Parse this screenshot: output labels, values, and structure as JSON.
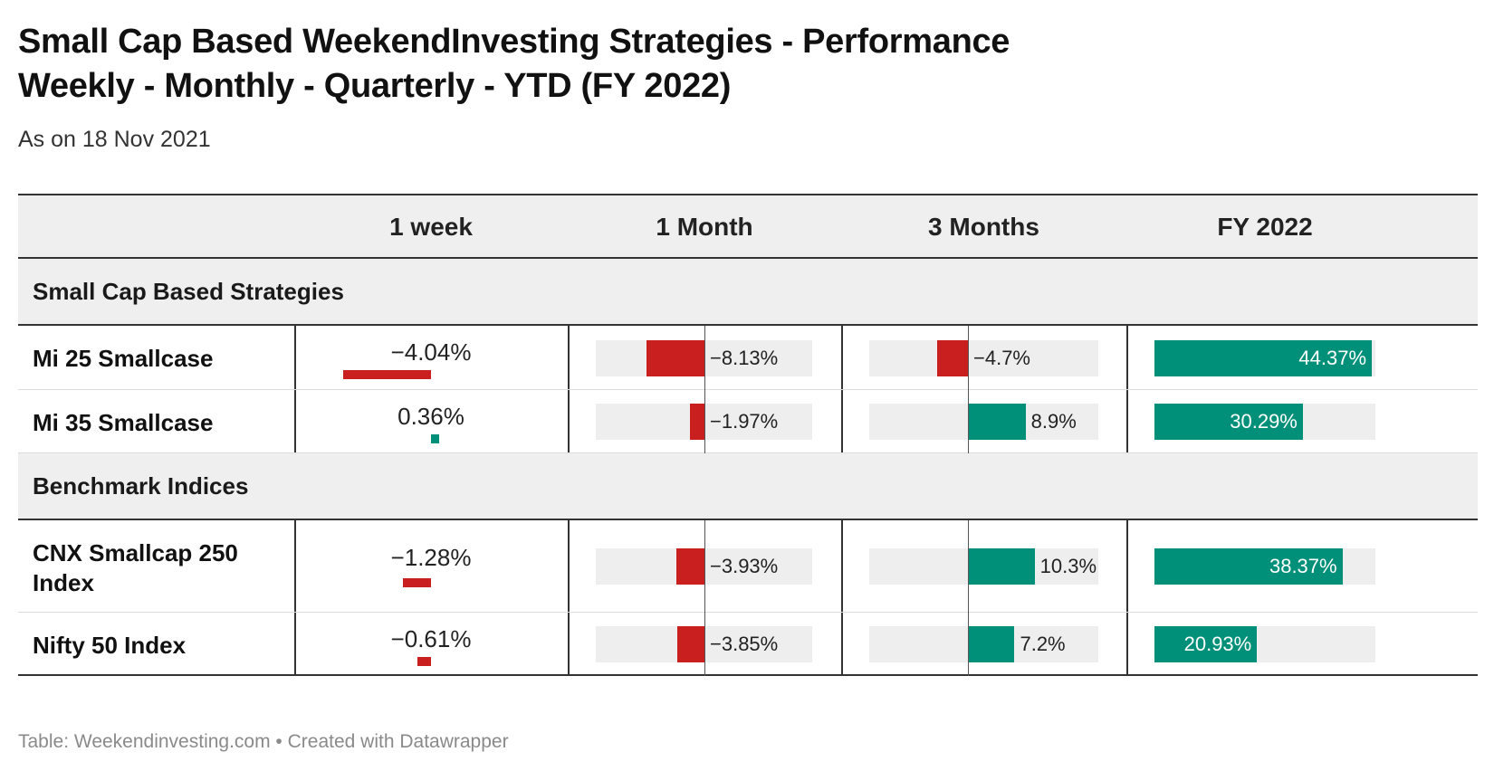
{
  "title_line1": "Small Cap Based WeekendInvesting Strategies - Performance",
  "title_line2": "Weekly - Monthly - Quarterly - YTD (FY 2022)",
  "subtitle": "As on 18 Nov 2021",
  "footer": "Table: Weekendinvesting.com • Created with Datawrapper",
  "colors": {
    "negative": "#c91f1f",
    "positive": "#00907a",
    "track": "#eeeeee"
  },
  "chart_data": {
    "type": "table",
    "columns": [
      "",
      "1 week",
      "1 Month",
      "3 Months",
      "FY 2022"
    ],
    "groups": [
      {
        "name": "Small Cap Based Strategies",
        "rows": [
          {
            "label": "Mi 25 Smallcase",
            "week": -4.04,
            "month": -8.13,
            "quarter": -4.7,
            "fy": 44.37,
            "week_label": "−4.04%",
            "month_label": "−8.13%",
            "quarter_label": "−4.7%",
            "fy_label": "44.37%"
          },
          {
            "label": "Mi 35 Smallcase",
            "week": 0.36,
            "month": -1.97,
            "quarter": 8.9,
            "fy": 30.29,
            "week_label": "0.36%",
            "month_label": "−1.97%",
            "quarter_label": "8.9%",
            "fy_label": "30.29%"
          }
        ]
      },
      {
        "name": "Benchmark Indices",
        "rows": [
          {
            "label": "CNX Smallcap 250 Index",
            "week": -1.28,
            "month": -3.93,
            "quarter": 10.3,
            "fy": 38.37,
            "week_label": "−1.28%",
            "month_label": "−3.93%",
            "quarter_label": "10.3%",
            "fy_label": "38.37%"
          },
          {
            "label": "Nifty 50 Index",
            "week": -0.61,
            "month": -3.85,
            "quarter": 7.2,
            "fy": 20.93,
            "week_label": "−0.61%",
            "month_label": "−3.85%",
            "quarter_label": "7.2%",
            "fy_label": "20.93%"
          }
        ]
      }
    ]
  }
}
